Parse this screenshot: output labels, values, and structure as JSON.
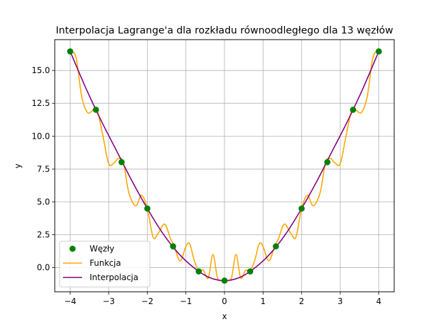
{
  "chart_data": {
    "type": "line",
    "title": "Interpolacja Lagrange'a dla rozkładu równoodległego dla 13 węzłów",
    "xlabel": "x",
    "ylabel": "y",
    "xlim": [
      -4.4,
      4.4
    ],
    "ylim": [
      -1.85,
      17.35
    ],
    "xticks": [
      -4,
      -3,
      -2,
      -1,
      0,
      1,
      2,
      3,
      4
    ],
    "xtick_labels": [
      "−4",
      "−3",
      "−2",
      "−1",
      "0",
      "1",
      "2",
      "3",
      "4"
    ],
    "yticks": [
      0.0,
      2.5,
      5.0,
      7.5,
      10.0,
      12.5,
      15.0
    ],
    "ytick_labels": [
      "0.0",
      "2.5",
      "5.0",
      "7.5",
      "10.0",
      "12.5",
      "15.0"
    ],
    "grid": true,
    "legend_position": "lower-left",
    "series": [
      {
        "name": "Węzły",
        "kind": "scatter",
        "color": "#008000",
        "x": [
          -4.0,
          -3.333,
          -2.667,
          -2.0,
          -1.333,
          -0.667,
          0.0,
          0.667,
          1.333,
          2.0,
          2.667,
          3.333,
          4.0
        ],
        "y": [
          16.45,
          12.01,
          8.02,
          4.49,
          1.61,
          -0.3,
          -1.0,
          -0.3,
          1.61,
          4.49,
          8.02,
          12.01,
          16.45
        ]
      },
      {
        "name": "Funkcja",
        "kind": "line",
        "color": "#FFA500",
        "x": [
          -4.0,
          -3.85,
          -3.7,
          -3.55,
          -3.4,
          -3.3,
          -3.15,
          -3.0,
          -2.85,
          -2.75,
          -2.62,
          -2.48,
          -2.3,
          -2.15,
          -2.0,
          -1.85,
          -1.72,
          -1.55,
          -1.4,
          -1.3,
          -1.15,
          -1.0,
          -0.9,
          -0.78,
          -0.65,
          -0.55,
          -0.42,
          -0.3,
          -0.18,
          -0.06,
          0.0,
          0.06,
          0.18,
          0.3,
          0.42,
          0.55,
          0.65,
          0.78,
          0.9,
          1.0,
          1.15,
          1.3,
          1.4,
          1.55,
          1.72,
          1.85,
          2.0,
          2.15,
          2.3,
          2.48,
          2.62,
          2.75,
          2.85,
          3.0,
          3.15,
          3.3,
          3.4,
          3.55,
          3.7,
          3.85,
          4.0
        ],
        "y": [
          16.45,
          16.0,
          13.0,
          11.8,
          12.0,
          12.0,
          10.0,
          7.9,
          8.0,
          8.3,
          8.0,
          5.7,
          4.7,
          5.5,
          4.49,
          2.3,
          2.6,
          3.3,
          2.2,
          1.6,
          0.5,
          1.6,
          1.8,
          0.5,
          -0.3,
          -0.2,
          -0.8,
          1.0,
          -0.8,
          -1.0,
          -1.0,
          -1.0,
          -0.8,
          1.0,
          -0.8,
          -0.2,
          -0.3,
          0.5,
          1.8,
          1.6,
          0.5,
          1.6,
          2.2,
          3.3,
          2.6,
          2.3,
          4.49,
          5.5,
          4.7,
          5.7,
          8.0,
          8.3,
          8.0,
          7.9,
          10.0,
          12.0,
          12.0,
          11.8,
          13.0,
          16.0,
          16.45
        ]
      },
      {
        "name": "Interpolacja",
        "kind": "line",
        "color": "#800080",
        "x": [
          -4.0,
          -3.6,
          -3.2,
          -2.8,
          -2.4,
          -2.0,
          -1.6,
          -1.2,
          -0.8,
          -0.4,
          0.0,
          0.4,
          0.8,
          1.2,
          1.6,
          2.0,
          2.4,
          2.8,
          3.2,
          3.6,
          4.0
        ],
        "y": [
          16.45,
          13.7,
          11.2,
          8.9,
          6.6,
          4.49,
          2.6,
          1.1,
          0.0,
          -0.75,
          -1.0,
          -0.75,
          0.0,
          1.1,
          2.6,
          4.49,
          6.6,
          8.9,
          11.2,
          13.7,
          16.45
        ]
      }
    ]
  }
}
